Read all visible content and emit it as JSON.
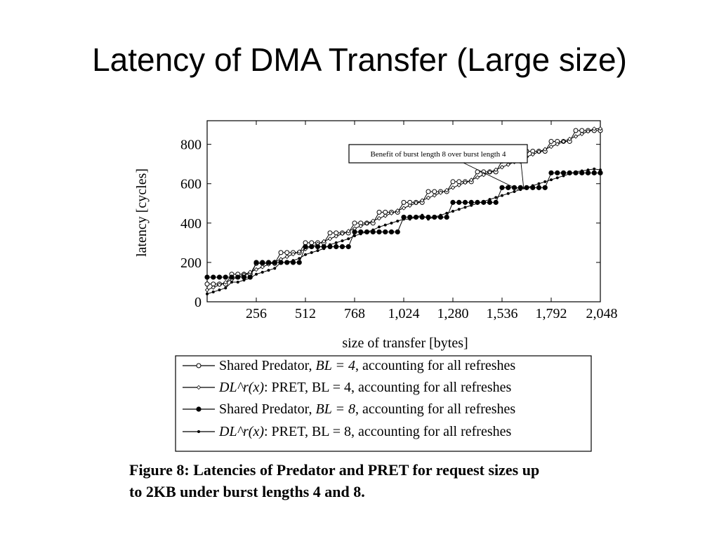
{
  "slide": {
    "title": "Latency of DMA Transfer (Large size)"
  },
  "caption": {
    "line1": "Figure 8: Latencies of Predator and PRET for request sizes up",
    "line2": "to 2KB under burst lengths 4 and 8."
  },
  "chart_data": {
    "type": "line",
    "title": "",
    "xlabel": "size of transfer [bytes]",
    "ylabel": "latency [cycles]",
    "xlim": [
      0,
      2048
    ],
    "ylim": [
      0,
      920
    ],
    "xticks": [
      256,
      512,
      768,
      1024,
      1280,
      1536,
      1792,
      2048
    ],
    "xtick_labels": [
      "256",
      "512",
      "768",
      "1,024",
      "1,280",
      "1,536",
      "1,792",
      "2,048"
    ],
    "yticks": [
      0,
      200,
      400,
      600,
      800
    ],
    "ytick_labels": [
      "0",
      "200",
      "400",
      "600",
      "800"
    ],
    "grid": false,
    "legend_position": "below",
    "annotation": "Benefit of burst length 8 over burst length 4",
    "series": [
      {
        "legend_pre": "Shared Predator, ",
        "legend_math": "BL = 4",
        "legend_post": ", accounting for all refreshes",
        "marker": "open-circle",
        "x": [
          0,
          32,
          64,
          96,
          128,
          160,
          192,
          224,
          256,
          288,
          320,
          352,
          384,
          416,
          448,
          480,
          512,
          544,
          576,
          608,
          640,
          672,
          704,
          736,
          768,
          800,
          832,
          864,
          896,
          928,
          960,
          992,
          1024,
          1056,
          1088,
          1120,
          1152,
          1184,
          1216,
          1248,
          1280,
          1312,
          1344,
          1376,
          1408,
          1440,
          1472,
          1504,
          1536,
          1568,
          1600,
          1632,
          1664,
          1696,
          1728,
          1760,
          1792,
          1824,
          1856,
          1888,
          1920,
          1952,
          1984,
          2016,
          2048
        ],
        "y": [
          90,
          90,
          90,
          90,
          140,
          140,
          140,
          140,
          195,
          195,
          195,
          195,
          250,
          250,
          250,
          250,
          300,
          300,
          300,
          300,
          350,
          350,
          350,
          350,
          400,
          400,
          400,
          400,
          455,
          455,
          455,
          455,
          505,
          505,
          505,
          505,
          560,
          560,
          560,
          560,
          610,
          610,
          610,
          610,
          660,
          660,
          660,
          660,
          715,
          715,
          715,
          715,
          765,
          765,
          765,
          765,
          815,
          815,
          815,
          815,
          870,
          870,
          870,
          870,
          870
        ]
      },
      {
        "legend_pre": "",
        "legend_math": "DL^r(x)",
        "legend_post": ": PRET, BL = 4, accounting for all refreshes",
        "marker": "small-diamond",
        "x": [
          0,
          32,
          64,
          96,
          128,
          160,
          192,
          224,
          256,
          288,
          320,
          352,
          384,
          416,
          448,
          480,
          512,
          544,
          576,
          608,
          640,
          672,
          704,
          736,
          768,
          800,
          832,
          864,
          896,
          928,
          960,
          992,
          1024,
          1056,
          1088,
          1120,
          1152,
          1184,
          1216,
          1248,
          1280,
          1312,
          1344,
          1376,
          1408,
          1440,
          1472,
          1504,
          1536,
          1568,
          1600,
          1632,
          1664,
          1696,
          1728,
          1760,
          1792,
          1824,
          1856,
          1888,
          1920,
          1952,
          1984,
          2016,
          2048
        ],
        "y": [
          60,
          73,
          86,
          99,
          112,
          125,
          138,
          151,
          164,
          177,
          190,
          203,
          216,
          229,
          242,
          255,
          268,
          281,
          294,
          307,
          320,
          333,
          346,
          359,
          372,
          385,
          398,
          411,
          424,
          437,
          450,
          463,
          476,
          489,
          502,
          515,
          528,
          541,
          554,
          567,
          580,
          593,
          606,
          619,
          632,
          645,
          658,
          671,
          684,
          697,
          710,
          723,
          736,
          749,
          762,
          775,
          788,
          801,
          814,
          827,
          840,
          853,
          866,
          879,
          880
        ]
      },
      {
        "legend_pre": "Shared Predator, ",
        "legend_math": "BL = 8",
        "legend_post": ", accounting for all refreshes",
        "marker": "filled-circle",
        "x": [
          0,
          32,
          64,
          96,
          128,
          160,
          192,
          224,
          256,
          288,
          320,
          352,
          384,
          416,
          448,
          480,
          512,
          544,
          576,
          608,
          640,
          672,
          704,
          736,
          768,
          800,
          832,
          864,
          896,
          928,
          960,
          992,
          1024,
          1056,
          1088,
          1120,
          1152,
          1184,
          1216,
          1248,
          1280,
          1312,
          1344,
          1376,
          1408,
          1440,
          1472,
          1504,
          1536,
          1568,
          1600,
          1632,
          1664,
          1696,
          1728,
          1760,
          1792,
          1824,
          1856,
          1888,
          1920,
          1952,
          1984,
          2016,
          2048
        ],
        "y": [
          125,
          125,
          125,
          125,
          125,
          125,
          125,
          125,
          200,
          200,
          200,
          200,
          200,
          200,
          200,
          200,
          280,
          280,
          280,
          280,
          280,
          280,
          280,
          280,
          355,
          355,
          355,
          355,
          355,
          355,
          355,
          355,
          430,
          430,
          430,
          430,
          430,
          430,
          430,
          430,
          505,
          505,
          505,
          505,
          505,
          505,
          505,
          505,
          580,
          580,
          580,
          580,
          580,
          580,
          580,
          580,
          655,
          655,
          655,
          655,
          655,
          655,
          655,
          655,
          655
        ]
      },
      {
        "legend_pre": "",
        "legend_math": "DL^r(x)",
        "legend_post": ": PRET, BL = 8, accounting for all refreshes",
        "marker": "small-filled",
        "x": [
          0,
          32,
          64,
          96,
          128,
          160,
          192,
          224,
          256,
          288,
          320,
          352,
          384,
          416,
          448,
          480,
          512,
          544,
          576,
          608,
          640,
          672,
          704,
          736,
          768,
          800,
          832,
          864,
          896,
          928,
          960,
          992,
          1024,
          1056,
          1088,
          1120,
          1152,
          1184,
          1216,
          1248,
          1280,
          1312,
          1344,
          1376,
          1408,
          1440,
          1472,
          1504,
          1536,
          1568,
          1600,
          1632,
          1664,
          1696,
          1728,
          1760,
          1792,
          1824,
          1856,
          1888,
          1920,
          1952,
          1984,
          2016,
          2048
        ],
        "y": [
          40,
          50,
          60,
          70,
          100,
          100,
          110,
          120,
          140,
          150,
          160,
          170,
          200,
          200,
          210,
          220,
          240,
          250,
          260,
          270,
          290,
          300,
          310,
          320,
          335,
          345,
          355,
          365,
          380,
          390,
          400,
          410,
          420,
          420,
          430,
          440,
          420,
          430,
          440,
          450,
          460,
          470,
          480,
          490,
          500,
          510,
          520,
          530,
          540,
          550,
          560,
          570,
          580,
          590,
          600,
          610,
          620,
          630,
          640,
          650,
          660,
          665,
          670,
          675,
          670
        ]
      }
    ]
  }
}
